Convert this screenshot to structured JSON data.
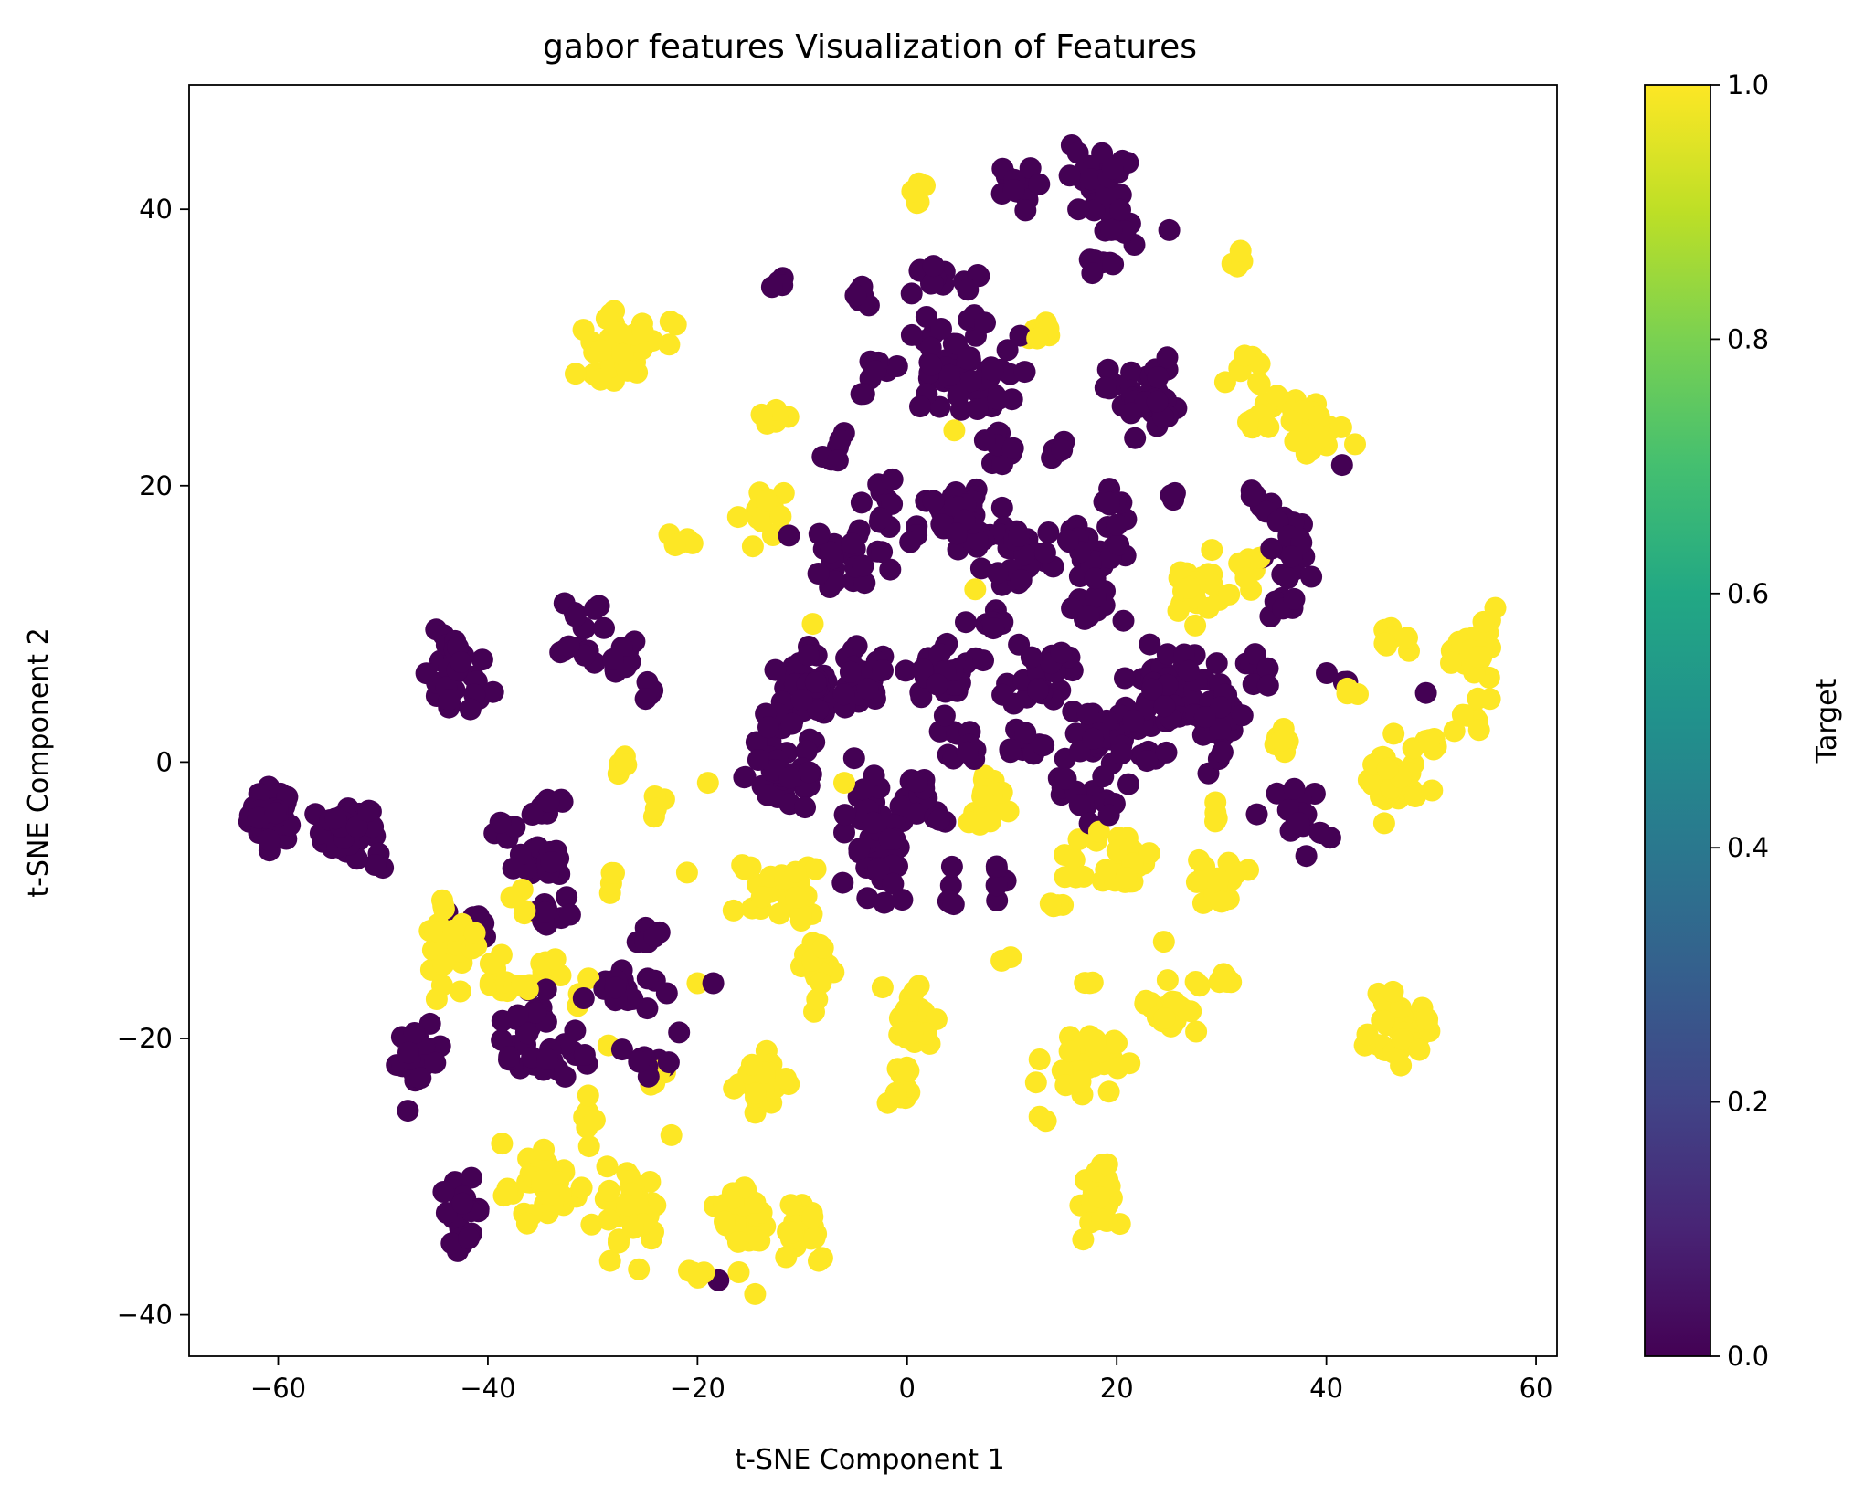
{
  "chart_data": {
    "type": "scatter",
    "title": "gabor features Visualization of Features",
    "xlabel": "t-SNE Component 1",
    "ylabel": "t-SNE Component 2",
    "xlim": [
      -68.5,
      62
    ],
    "ylim": [
      -43,
      49
    ],
    "xticks": [
      -60,
      -40,
      -20,
      0,
      20,
      40,
      60
    ],
    "yticks": [
      -40,
      -20,
      0,
      20,
      40
    ],
    "xtick_labels": [
      "−60",
      "−40",
      "−20",
      "0",
      "20",
      "40",
      "60"
    ],
    "ytick_labels": [
      "−40",
      "−20",
      "0",
      "20",
      "40"
    ],
    "grid": false,
    "colorbar": {
      "label": "Target",
      "colormap": "viridis",
      "range": [
        0.0,
        1.0
      ],
      "ticks": [
        0.0,
        0.2,
        0.4,
        0.6,
        0.8,
        1.0
      ],
      "tick_labels": [
        "0.0",
        "0.2",
        "0.4",
        "0.6",
        "0.8",
        "1.0"
      ]
    },
    "colors": {
      "target_0": "#440154",
      "target_1": "#fde725"
    },
    "clusters": [
      {
        "target": 0,
        "cx": -60.5,
        "cy": -3.8,
        "rx": 2.0,
        "ry": 1.8,
        "n": 40
      },
      {
        "target": 0,
        "cx": -53.5,
        "cy": -5.0,
        "rx": 2.6,
        "ry": 1.8,
        "n": 30
      },
      {
        "target": 0,
        "cx": -50.5,
        "cy": -7.0,
        "rx": 0.8,
        "ry": 1.2,
        "n": 4
      },
      {
        "target": 0,
        "cx": -43.0,
        "cy": 6.0,
        "rx": 3.0,
        "ry": 3.0,
        "n": 30
      },
      {
        "target": 0,
        "cx": -31.0,
        "cy": 10.0,
        "rx": 2.0,
        "ry": 2.5,
        "n": 12
      },
      {
        "target": 0,
        "cx": -28.5,
        "cy": 7.5,
        "rx": 3.0,
        "ry": 1.5,
        "n": 15
      },
      {
        "target": 0,
        "cx": -25.0,
        "cy": 5.5,
        "rx": 1.2,
        "ry": 1.0,
        "n": 4
      },
      {
        "target": 0,
        "cx": -38.5,
        "cy": -5.0,
        "rx": 1.5,
        "ry": 1.0,
        "n": 6
      },
      {
        "target": 0,
        "cx": -34.5,
        "cy": -3.0,
        "rx": 2.5,
        "ry": 1.2,
        "n": 10
      },
      {
        "target": 0,
        "cx": -34.0,
        "cy": -7.0,
        "rx": 3.0,
        "ry": 1.5,
        "n": 14
      },
      {
        "target": 0,
        "cx": -34.5,
        "cy": -11.0,
        "rx": 2.5,
        "ry": 1.5,
        "n": 10
      },
      {
        "target": 0,
        "cx": -41.0,
        "cy": -11.5,
        "rx": 1.5,
        "ry": 1.0,
        "n": 6
      },
      {
        "target": 0,
        "cx": -36.0,
        "cy": -19.0,
        "rx": 3.5,
        "ry": 2.0,
        "n": 20
      },
      {
        "target": 0,
        "cx": -34.0,
        "cy": -21.5,
        "rx": 3.5,
        "ry": 1.5,
        "n": 14
      },
      {
        "target": 0,
        "cx": -27.5,
        "cy": -16.5,
        "rx": 3.0,
        "ry": 1.5,
        "n": 20
      },
      {
        "target": 0,
        "cx": -24.0,
        "cy": -21.0,
        "rx": 2.0,
        "ry": 1.5,
        "n": 10
      },
      {
        "target": 0,
        "cx": -25.0,
        "cy": -12.5,
        "rx": 1.5,
        "ry": 1.0,
        "n": 6
      },
      {
        "target": 0,
        "cx": -46.5,
        "cy": -21.5,
        "rx": 2.0,
        "ry": 2.0,
        "n": 28
      },
      {
        "target": 0,
        "cx": -42.5,
        "cy": -32.5,
        "rx": 1.8,
        "ry": 2.0,
        "n": 22
      },
      {
        "target": 0,
        "cx": -12.0,
        "cy": 34.5,
        "rx": 1.0,
        "ry": 0.8,
        "n": 4
      },
      {
        "target": 0,
        "cx": -10.0,
        "cy": 4.5,
        "rx": 4.0,
        "ry": 3.0,
        "n": 40
      },
      {
        "target": 0,
        "cx": -11.5,
        "cy": -1.0,
        "rx": 3.5,
        "ry": 2.5,
        "n": 35
      },
      {
        "target": 0,
        "cx": -4.5,
        "cy": 5.5,
        "rx": 2.5,
        "ry": 2.5,
        "n": 20
      },
      {
        "target": 0,
        "cx": -2.5,
        "cy": -7.0,
        "rx": 2.5,
        "ry": 3.5,
        "n": 35
      },
      {
        "target": 0,
        "cx": -3.5,
        "cy": -3.0,
        "rx": 2.0,
        "ry": 1.5,
        "n": 10
      },
      {
        "target": 0,
        "cx": -5.0,
        "cy": 15.0,
        "rx": 4.0,
        "ry": 2.5,
        "n": 30
      },
      {
        "target": 0,
        "cx": -2.5,
        "cy": 19.0,
        "rx": 1.5,
        "ry": 2.0,
        "n": 10
      },
      {
        "target": 0,
        "cx": -6.5,
        "cy": 22.5,
        "rx": 1.5,
        "ry": 1.0,
        "n": 6
      },
      {
        "target": 0,
        "cx": -4.0,
        "cy": 34.0,
        "rx": 1.5,
        "ry": 1.0,
        "n": 6
      },
      {
        "target": 0,
        "cx": -3.0,
        "cy": 28.0,
        "rx": 1.5,
        "ry": 1.2,
        "n": 8
      },
      {
        "target": 0,
        "cx": 2.0,
        "cy": 35.0,
        "rx": 2.0,
        "ry": 1.5,
        "n": 10
      },
      {
        "target": 0,
        "cx": 6.5,
        "cy": 33.5,
        "rx": 1.5,
        "ry": 2.0,
        "n": 10
      },
      {
        "target": 0,
        "cx": 3.5,
        "cy": 28.5,
        "rx": 3.5,
        "ry": 3.0,
        "n": 35
      },
      {
        "target": 0,
        "cx": 8.0,
        "cy": 27.5,
        "rx": 2.5,
        "ry": 3.0,
        "n": 15
      },
      {
        "target": 0,
        "cx": 8.5,
        "cy": 22.5,
        "rx": 2.0,
        "ry": 1.5,
        "n": 10
      },
      {
        "target": 0,
        "cx": 5.5,
        "cy": 17.0,
        "rx": 4.0,
        "ry": 3.0,
        "n": 45
      },
      {
        "target": 0,
        "cx": 11.0,
        "cy": 15.0,
        "rx": 2.5,
        "ry": 2.5,
        "n": 20
      },
      {
        "target": 0,
        "cx": 4.0,
        "cy": 6.5,
        "rx": 4.0,
        "ry": 2.0,
        "n": 30
      },
      {
        "target": 0,
        "cx": 8.0,
        "cy": 10.0,
        "rx": 1.5,
        "ry": 1.0,
        "n": 8
      },
      {
        "target": 0,
        "cx": 12.5,
        "cy": 6.5,
        "rx": 2.5,
        "ry": 2.5,
        "n": 25
      },
      {
        "target": 0,
        "cx": 6.0,
        "cy": 1.5,
        "rx": 2.0,
        "ry": 1.2,
        "n": 10
      },
      {
        "target": 0,
        "cx": 11.0,
        "cy": 1.5,
        "rx": 2.0,
        "ry": 1.2,
        "n": 10
      },
      {
        "target": 0,
        "cx": 0.5,
        "cy": -2.5,
        "rx": 2.0,
        "ry": 2.0,
        "n": 12
      },
      {
        "target": 0,
        "cx": 3.0,
        "cy": -4.0,
        "rx": 1.0,
        "ry": 1.0,
        "n": 4
      },
      {
        "target": 0,
        "cx": 4.0,
        "cy": -9.5,
        "rx": 0.8,
        "ry": 1.5,
        "n": 6
      },
      {
        "target": 0,
        "cx": 8.5,
        "cy": -9.0,
        "rx": 0.8,
        "ry": 2.0,
        "n": 5
      },
      {
        "target": 0,
        "cx": 10.0,
        "cy": 41.5,
        "rx": 2.0,
        "ry": 1.5,
        "n": 12
      },
      {
        "target": 0,
        "cx": 18.0,
        "cy": 42.0,
        "rx": 2.5,
        "ry": 2.5,
        "n": 30
      },
      {
        "target": 0,
        "cx": 20.5,
        "cy": 38.5,
        "rx": 1.5,
        "ry": 1.5,
        "n": 8
      },
      {
        "target": 0,
        "cx": 18.5,
        "cy": 36.0,
        "rx": 1.2,
        "ry": 1.2,
        "n": 6
      },
      {
        "target": 0,
        "cx": 22.5,
        "cy": 26.5,
        "rx": 3.0,
        "ry": 2.5,
        "n": 35
      },
      {
        "target": 0,
        "cx": 14.5,
        "cy": 22.0,
        "rx": 1.0,
        "ry": 1.0,
        "n": 5
      },
      {
        "target": 0,
        "cx": 17.5,
        "cy": 15.0,
        "rx": 3.5,
        "ry": 2.0,
        "n": 25
      },
      {
        "target": 0,
        "cx": 17.5,
        "cy": 11.0,
        "rx": 2.5,
        "ry": 1.5,
        "n": 12
      },
      {
        "target": 0,
        "cx": 20.0,
        "cy": 18.5,
        "rx": 1.5,
        "ry": 1.5,
        "n": 8
      },
      {
        "target": 0,
        "cx": 25.5,
        "cy": 19.0,
        "rx": 1.0,
        "ry": 0.8,
        "n": 3
      },
      {
        "target": 0,
        "cx": 20.0,
        "cy": 2.0,
        "rx": 4.0,
        "ry": 2.5,
        "n": 40
      },
      {
        "target": 0,
        "cx": 24.5,
        "cy": 5.5,
        "rx": 3.5,
        "ry": 2.5,
        "n": 35
      },
      {
        "target": 0,
        "cx": 29.5,
        "cy": 3.5,
        "rx": 3.0,
        "ry": 2.5,
        "n": 35
      },
      {
        "target": 0,
        "cx": 33.0,
        "cy": 6.5,
        "rx": 1.5,
        "ry": 1.5,
        "n": 8
      },
      {
        "target": 0,
        "cx": 18.0,
        "cy": -3.0,
        "rx": 2.0,
        "ry": 1.0,
        "n": 10
      },
      {
        "target": 0,
        "cx": 14.5,
        "cy": -2.0,
        "rx": 1.0,
        "ry": 1.0,
        "n": 4
      },
      {
        "target": 0,
        "cx": 37.0,
        "cy": 15.5,
        "rx": 2.5,
        "ry": 2.5,
        "n": 25
      },
      {
        "target": 0,
        "cx": 34.0,
        "cy": 18.5,
        "rx": 1.5,
        "ry": 1.0,
        "n": 6
      },
      {
        "target": 0,
        "cx": 37.0,
        "cy": 11.5,
        "rx": 1.5,
        "ry": 1.0,
        "n": 5
      },
      {
        "target": 0,
        "cx": 37.5,
        "cy": -4.0,
        "rx": 2.0,
        "ry": 2.5,
        "n": 20
      },
      {
        "target": 0,
        "cx": 41.0,
        "cy": 6.0,
        "rx": 1.0,
        "ry": 0.8,
        "n": 3
      },
      {
        "target": 0,
        "cx": 49.5,
        "cy": 5.0,
        "rx": 0.5,
        "ry": 0.5,
        "n": 1
      },
      {
        "target": 0,
        "cx": 41.5,
        "cy": 21.5,
        "rx": 0.5,
        "ry": 0.5,
        "n": 1
      },
      {
        "target": 0,
        "cx": -18.0,
        "cy": -37.5,
        "rx": 0.5,
        "ry": 0.5,
        "n": 1
      },
      {
        "target": 0,
        "cx": -18.5,
        "cy": -16.0,
        "rx": 0.5,
        "ry": 0.5,
        "n": 1
      },
      {
        "target": 0,
        "cx": 25.0,
        "cy": 38.5,
        "rx": 0.5,
        "ry": 0.5,
        "n": 1
      },
      {
        "target": 1,
        "cx": -27.5,
        "cy": 30.0,
        "rx": 3.5,
        "ry": 2.0,
        "n": 35
      },
      {
        "target": 1,
        "cx": -22.0,
        "cy": 31.5,
        "rx": 1.0,
        "ry": 0.8,
        "n": 3
      },
      {
        "target": 1,
        "cx": -13.0,
        "cy": 25.0,
        "rx": 1.5,
        "ry": 0.8,
        "n": 8
      },
      {
        "target": 1,
        "cx": -13.5,
        "cy": 18.0,
        "rx": 2.0,
        "ry": 2.0,
        "n": 18
      },
      {
        "target": 1,
        "cx": -22.0,
        "cy": 16.0,
        "rx": 1.0,
        "ry": 1.0,
        "n": 6
      },
      {
        "target": 1,
        "cx": 1.0,
        "cy": 41.5,
        "rx": 1.0,
        "ry": 0.8,
        "n": 5
      },
      {
        "target": 1,
        "cx": 12.5,
        "cy": 31.0,
        "rx": 1.2,
        "ry": 1.0,
        "n": 6
      },
      {
        "target": 1,
        "cx": 31.5,
        "cy": 36.5,
        "rx": 0.8,
        "ry": 0.8,
        "n": 4
      },
      {
        "target": 1,
        "cx": 32.0,
        "cy": 28.5,
        "rx": 1.5,
        "ry": 1.5,
        "n": 8
      },
      {
        "target": 1,
        "cx": 35.0,
        "cy": 25.0,
        "rx": 2.5,
        "ry": 2.0,
        "n": 15
      },
      {
        "target": 1,
        "cx": 39.0,
        "cy": 24.0,
        "rx": 2.5,
        "ry": 2.5,
        "n": 18
      },
      {
        "target": 1,
        "cx": 27.5,
        "cy": 12.5,
        "rx": 2.5,
        "ry": 2.0,
        "n": 25
      },
      {
        "target": 1,
        "cx": 32.5,
        "cy": 14.5,
        "rx": 1.5,
        "ry": 1.5,
        "n": 8
      },
      {
        "target": 1,
        "cx": 46.5,
        "cy": 8.5,
        "rx": 1.5,
        "ry": 0.8,
        "n": 8
      },
      {
        "target": 1,
        "cx": 54.5,
        "cy": 8.0,
        "rx": 1.8,
        "ry": 2.5,
        "n": 30
      },
      {
        "target": 1,
        "cx": 53.5,
        "cy": 3.0,
        "rx": 2.0,
        "ry": 1.0,
        "n": 8
      },
      {
        "target": 1,
        "cx": 50.0,
        "cy": 1.0,
        "rx": 1.2,
        "ry": 1.2,
        "n": 6
      },
      {
        "target": 1,
        "cx": 46.0,
        "cy": -1.5,
        "rx": 2.5,
        "ry": 2.5,
        "n": 35
      },
      {
        "target": 1,
        "cx": 36.0,
        "cy": 1.5,
        "rx": 1.2,
        "ry": 1.5,
        "n": 8
      },
      {
        "target": 1,
        "cx": 42.0,
        "cy": 5.0,
        "rx": 0.8,
        "ry": 0.8,
        "n": 3
      },
      {
        "target": 1,
        "cx": 47.0,
        "cy": -19.5,
        "rx": 2.5,
        "ry": 2.0,
        "n": 35
      },
      {
        "target": 1,
        "cx": 29.5,
        "cy": -8.5,
        "rx": 2.5,
        "ry": 1.5,
        "n": 20
      },
      {
        "target": 1,
        "cx": 29.5,
        "cy": -3.5,
        "rx": 1.0,
        "ry": 1.0,
        "n": 4
      },
      {
        "target": 1,
        "cx": 20.5,
        "cy": -7.0,
        "rx": 2.5,
        "ry": 2.0,
        "n": 25
      },
      {
        "target": 1,
        "cx": 25.0,
        "cy": -17.5,
        "rx": 2.5,
        "ry": 2.0,
        "n": 25
      },
      {
        "target": 1,
        "cx": 30.5,
        "cy": -16.0,
        "rx": 1.5,
        "ry": 0.8,
        "n": 6
      },
      {
        "target": 1,
        "cx": 24.5,
        "cy": -13.0,
        "rx": 0.5,
        "ry": 0.5,
        "n": 1
      },
      {
        "target": 1,
        "cx": 16.5,
        "cy": -21.5,
        "rx": 3.0,
        "ry": 2.0,
        "n": 40
      },
      {
        "target": 1,
        "cx": 17.5,
        "cy": -16.0,
        "rx": 1.0,
        "ry": 0.5,
        "n": 3
      },
      {
        "target": 1,
        "cx": 13.0,
        "cy": -25.5,
        "rx": 0.8,
        "ry": 0.8,
        "n": 2
      },
      {
        "target": 1,
        "cx": 18.0,
        "cy": -32.0,
        "rx": 1.5,
        "ry": 2.5,
        "n": 25
      },
      {
        "target": 1,
        "cx": 7.5,
        "cy": -3.0,
        "rx": 1.5,
        "ry": 2.5,
        "n": 18
      },
      {
        "target": 1,
        "cx": 15.0,
        "cy": -10.0,
        "rx": 1.0,
        "ry": 1.5,
        "n": 6
      },
      {
        "target": 1,
        "cx": 15.0,
        "cy": -7.0,
        "rx": 1.0,
        "ry": 0.5,
        "n": 3
      },
      {
        "target": 1,
        "cx": 9.5,
        "cy": -14.5,
        "rx": 0.5,
        "ry": 0.5,
        "n": 2
      },
      {
        "target": 1,
        "cx": 0.5,
        "cy": -18.5,
        "rx": 2.0,
        "ry": 2.5,
        "n": 25
      },
      {
        "target": 1,
        "cx": -0.5,
        "cy": -23.5,
        "rx": 1.5,
        "ry": 1.5,
        "n": 10
      },
      {
        "target": 1,
        "cx": -8.5,
        "cy": -14.5,
        "rx": 1.2,
        "ry": 3.0,
        "n": 25
      },
      {
        "target": 1,
        "cx": -12.0,
        "cy": -9.5,
        "rx": 2.5,
        "ry": 1.5,
        "n": 25
      },
      {
        "target": 1,
        "cx": -15.5,
        "cy": -7.5,
        "rx": 1.0,
        "ry": 0.6,
        "n": 3
      },
      {
        "target": 1,
        "cx": -9.0,
        "cy": -7.5,
        "rx": 0.6,
        "ry": 0.5,
        "n": 2
      },
      {
        "target": 1,
        "cx": -14.0,
        "cy": -23.0,
        "rx": 2.5,
        "ry": 1.8,
        "n": 20
      },
      {
        "target": 1,
        "cx": -15.5,
        "cy": -33.0,
        "rx": 2.0,
        "ry": 3.0,
        "n": 35
      },
      {
        "target": 1,
        "cx": -10.0,
        "cy": -33.5,
        "rx": 2.5,
        "ry": 2.5,
        "n": 25
      },
      {
        "target": 1,
        "cx": -20.5,
        "cy": -37.0,
        "rx": 1.2,
        "ry": 0.5,
        "n": 4
      },
      {
        "target": 1,
        "cx": -14.5,
        "cy": -38.5,
        "rx": 0.5,
        "ry": 0.5,
        "n": 1
      },
      {
        "target": 1,
        "cx": -26.0,
        "cy": -32.5,
        "rx": 2.5,
        "ry": 3.0,
        "n": 35
      },
      {
        "target": 1,
        "cx": -34.0,
        "cy": -30.5,
        "rx": 2.5,
        "ry": 2.5,
        "n": 35
      },
      {
        "target": 1,
        "cx": -38.5,
        "cy": -31.0,
        "rx": 1.0,
        "ry": 1.0,
        "n": 4
      },
      {
        "target": 1,
        "cx": -30.5,
        "cy": -26.0,
        "rx": 1.2,
        "ry": 2.0,
        "n": 6
      },
      {
        "target": 1,
        "cx": -23.5,
        "cy": -22.5,
        "rx": 1.0,
        "ry": 1.0,
        "n": 4
      },
      {
        "target": 1,
        "cx": -22.5,
        "cy": -27.0,
        "rx": 0.5,
        "ry": 0.5,
        "n": 1
      },
      {
        "target": 1,
        "cx": -43.5,
        "cy": -13.0,
        "rx": 2.5,
        "ry": 3.5,
        "n": 35
      },
      {
        "target": 1,
        "cx": -38.0,
        "cy": -16.0,
        "rx": 2.5,
        "ry": 1.5,
        "n": 14
      },
      {
        "target": 1,
        "cx": -34.5,
        "cy": -14.5,
        "rx": 1.5,
        "ry": 1.0,
        "n": 6
      },
      {
        "target": 1,
        "cx": -36.5,
        "cy": -10.0,
        "rx": 1.0,
        "ry": 1.0,
        "n": 4
      },
      {
        "target": 1,
        "cx": -28.0,
        "cy": -8.0,
        "rx": 1.0,
        "ry": 1.0,
        "n": 4
      },
      {
        "target": 1,
        "cx": -31.0,
        "cy": -16.5,
        "rx": 1.0,
        "ry": 1.0,
        "n": 3
      },
      {
        "target": 1,
        "cx": -27.5,
        "cy": 0.0,
        "rx": 0.8,
        "ry": 1.2,
        "n": 4
      },
      {
        "target": 1,
        "cx": -23.5,
        "cy": -3.5,
        "rx": 1.0,
        "ry": 1.0,
        "n": 4
      },
      {
        "target": 1,
        "cx": -28.5,
        "cy": -20.5,
        "rx": 0.5,
        "ry": 0.5,
        "n": 1
      },
      {
        "target": 1,
        "cx": -19.0,
        "cy": -1.5,
        "rx": 0.5,
        "ry": 0.5,
        "n": 1
      },
      {
        "target": 1,
        "cx": -21.0,
        "cy": -8.0,
        "rx": 0.5,
        "ry": 0.5,
        "n": 1
      },
      {
        "target": 1,
        "cx": -20.0,
        "cy": -16.0,
        "rx": 0.5,
        "ry": 0.5,
        "n": 1
      },
      {
        "target": 1,
        "cx": -9.0,
        "cy": 10.0,
        "rx": 0.5,
        "ry": 0.5,
        "n": 1
      },
      {
        "target": 1,
        "cx": -6.0,
        "cy": -1.5,
        "rx": 0.5,
        "ry": 0.5,
        "n": 1
      },
      {
        "target": 1,
        "cx": 6.5,
        "cy": 12.5,
        "rx": 0.5,
        "ry": 0.5,
        "n": 1
      },
      {
        "target": 1,
        "cx": 4.5,
        "cy": 24.0,
        "rx": 0.5,
        "ry": 0.5,
        "n": 1
      }
    ]
  }
}
